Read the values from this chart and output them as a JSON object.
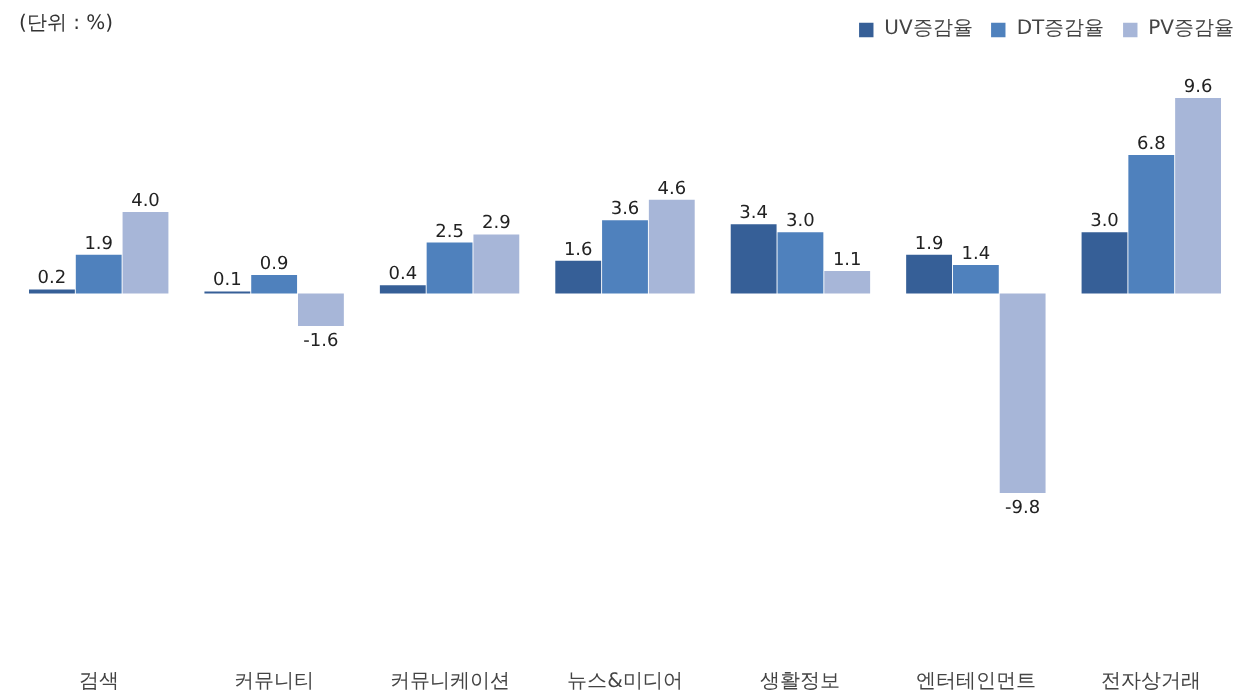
{
  "chart_data": {
    "type": "bar",
    "categories": [
      "검색",
      "커뮤니티",
      "커뮤니케이션",
      "뉴스&미디어",
      "생활정보",
      "엔터테인먼트",
      "전자상거래"
    ],
    "series": [
      {
        "name": "UV증감율",
        "color": "#365f97",
        "values": [
          0.2,
          0.1,
          0.4,
          1.6,
          3.4,
          1.9,
          3.0
        ],
        "value_labels": [
          "0.2",
          "0.1",
          "0.4",
          "1.6",
          "3.4",
          "1.9",
          "3.0"
        ]
      },
      {
        "name": "DT증감율",
        "color": "#4f81bd",
        "values": [
          1.9,
          0.9,
          2.5,
          3.6,
          3.0,
          1.4,
          6.8
        ],
        "value_labels": [
          "1.9",
          "0.9",
          "2.5",
          "3.6",
          "3.0",
          "1.4",
          "6.8"
        ]
      },
      {
        "name": "PV증감율",
        "color": "#a7b6d8",
        "values": [
          4.0,
          -1.6,
          2.9,
          4.6,
          1.1,
          -9.8,
          9.6
        ],
        "value_labels": [
          "4.0",
          "-1.6",
          "2.9",
          "4.6",
          "1.1",
          "-9.8",
          "9.6"
        ]
      }
    ],
    "legend": "top right",
    "annotations": [
      "(단위 : %)"
    ]
  }
}
